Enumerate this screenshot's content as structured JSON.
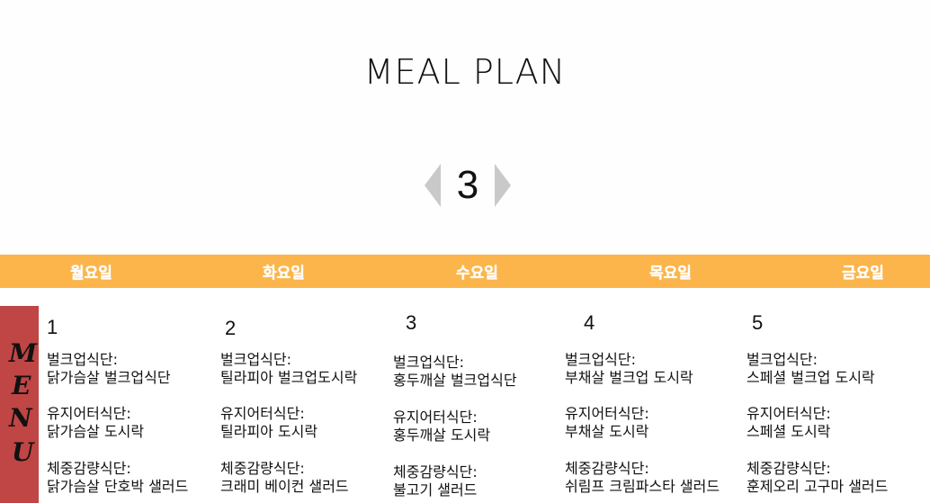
{
  "header": {
    "title": "MEAL PLAN"
  },
  "pager": {
    "page": "3"
  },
  "days": [
    "월요일",
    "화요일",
    "수요일",
    "목요일",
    "금요일"
  ],
  "menu_label": [
    "M",
    "E",
    "N",
    "U"
  ],
  "columns": [
    {
      "num": "1",
      "bulk_label": "벌크업식단:",
      "bulk_item": "닭가슴살 벌크업식단",
      "maint_label": "유지어터식단:",
      "maint_item": "닭가슴살 도시락",
      "loss_label": "체중감량식단:",
      "loss_item": "닭가슴살 단호박 샐러드"
    },
    {
      "num": "2",
      "bulk_label": "벌크업식단:",
      "bulk_item": "틸라피아 벌크업도시락",
      "maint_label": "유지어터식단:",
      "maint_item": "틸라피아 도시락",
      "loss_label": "체중감량식단:",
      "loss_item": "크래미 베이컨 샐러드"
    },
    {
      "num": "3",
      "bulk_label": "벌크업식단:",
      "bulk_item": "홍두깨살 벌크업식단",
      "maint_label": "유지어터식단:",
      "maint_item": "홍두깨살 도시락",
      "loss_label": "체중감량식단:",
      "loss_item": "불고기 샐러드"
    },
    {
      "num": "4",
      "bulk_label": "벌크업식단:",
      "bulk_item": "부채살 벌크업 도시락",
      "maint_label": "유지어터식단:",
      "maint_item": "부채살 도시락",
      "loss_label": "체중감량식단:",
      "loss_item": "쉬림프 크림파스타 샐러드"
    },
    {
      "num": "5",
      "bulk_label": "벌크업식단:",
      "bulk_item": "스페셜 벌크업 도시락",
      "maint_label": "유지어터식단:",
      "maint_item": "스페셜 도시락",
      "loss_label": "체중감량식단:",
      "loss_item": "훈제오리 고구마 샐러드"
    }
  ],
  "colors": {
    "accent": "#fbb54b",
    "menu_bg": "#c04545",
    "arrow": "#c9c9c9"
  },
  "icons": {
    "prev": "chevron-left-icon",
    "next": "chevron-right-icon"
  }
}
